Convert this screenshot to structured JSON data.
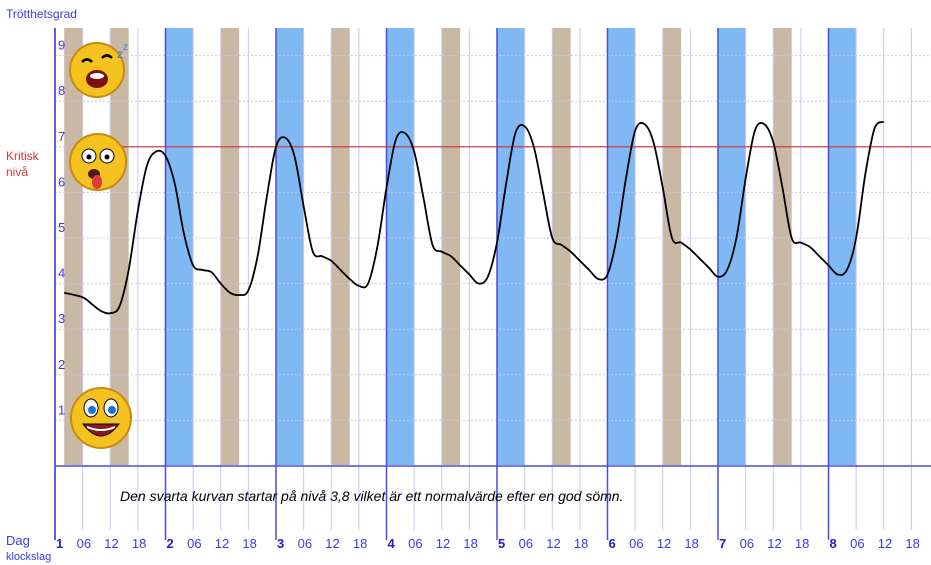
{
  "chart_data": {
    "type": "line",
    "title": "Trötthetsgrad",
    "critical_label_line1": "Kritisk",
    "critical_label_line2": "nivå",
    "critical_level": 7,
    "xlabel_line1": "Dag",
    "xlabel_line2": "klockslag",
    "caption": "Den svarta kurvan startar på nivå 3,8 vilket är ett normalvärde efter en god sömn.",
    "ylim": [
      0,
      10
    ],
    "y_ticks": [
      "1",
      "2",
      "3",
      "4",
      "5",
      "6",
      "7",
      "8",
      "9"
    ],
    "x_tick_labels": [
      "1",
      "06",
      "12",
      "18",
      "2",
      "06",
      "12",
      "18",
      "3",
      "06",
      "12",
      "18",
      "4",
      "06",
      "12",
      "18",
      "5",
      "06",
      "12",
      "18",
      "6",
      "06",
      "12",
      "18",
      "7",
      "06",
      "12",
      "18",
      "8",
      "06",
      "12",
      "18"
    ],
    "day_starts_hours": [
      0,
      24,
      48,
      72,
      96,
      120,
      144,
      168
    ],
    "xlim_hours": [
      0,
      192
    ],
    "awake_bands_hours": [
      [
        2,
        6
      ],
      [
        12,
        16
      ],
      [
        26,
        30
      ],
      [
        36,
        40
      ],
      [
        50,
        54
      ],
      [
        60,
        64
      ],
      [
        74,
        78
      ],
      [
        84,
        88
      ],
      [
        98,
        102
      ],
      [
        108,
        112
      ],
      [
        122,
        126
      ],
      [
        132,
        136
      ],
      [
        146,
        150
      ],
      [
        156,
        160
      ],
      [
        170,
        174
      ]
    ],
    "sleep_bands_hours": [
      [
        24,
        30
      ],
      [
        48,
        54
      ],
      [
        72,
        78
      ],
      [
        96,
        102
      ],
      [
        120,
        126
      ],
      [
        144,
        150
      ],
      [
        168,
        174
      ]
    ],
    "series": [
      {
        "color": "#000000",
        "x": [
          2,
          6,
          8,
          10,
          12,
          14,
          16,
          18,
          20,
          22,
          24,
          26,
          28,
          30,
          32,
          34,
          36,
          38,
          40,
          42,
          44,
          46,
          48,
          50,
          52,
          54,
          56,
          58,
          60,
          62,
          64,
          66,
          68,
          70,
          72,
          74,
          76,
          78,
          80,
          82,
          84,
          86,
          88,
          90,
          92,
          94,
          96,
          98,
          100,
          102,
          104,
          106,
          108,
          110,
          112,
          114,
          116,
          118,
          120,
          122,
          124,
          126,
          128,
          130,
          132,
          134,
          136,
          138,
          140,
          142,
          144,
          146,
          148,
          150,
          152,
          154,
          156,
          158,
          160,
          162,
          164,
          166,
          168,
          170,
          172,
          174,
          176,
          178,
          180
        ],
        "values": [
          3.8,
          3.7,
          3.55,
          3.4,
          3.35,
          3.5,
          4.3,
          5.6,
          6.6,
          6.9,
          6.8,
          6.2,
          5.1,
          4.4,
          4.3,
          4.25,
          4.0,
          3.8,
          3.75,
          3.85,
          4.6,
          5.9,
          7.0,
          7.2,
          6.8,
          5.7,
          4.7,
          4.6,
          4.5,
          4.3,
          4.1,
          3.95,
          4.0,
          4.8,
          6.1,
          7.15,
          7.3,
          6.9,
          5.9,
          4.85,
          4.7,
          4.6,
          4.4,
          4.2,
          4.0,
          4.15,
          4.9,
          6.2,
          7.3,
          7.45,
          7.0,
          6.0,
          5.0,
          4.85,
          4.7,
          4.5,
          4.3,
          4.1,
          4.2,
          5.0,
          6.3,
          7.35,
          7.5,
          7.1,
          6.1,
          5.0,
          4.9,
          4.75,
          4.55,
          4.35,
          4.15,
          4.3,
          5.0,
          6.3,
          7.35,
          7.5,
          7.1,
          6.1,
          5.0,
          4.9,
          4.8,
          4.6,
          4.4,
          4.2,
          4.3,
          5.0,
          6.4,
          7.4,
          7.55
        ]
      }
    ]
  },
  "icons": {
    "sleepy_face": "yawning-sleepy-face-icon",
    "tired_face": "exhausted-face-icon",
    "happy_face": "happy-face-icon"
  },
  "colors": {
    "grid": "#c8c8f0",
    "axis": "#4a4ae0",
    "awake_band": "#c9b8a4",
    "sleep_band": "#7fb8f2",
    "critical_line": "#c43030",
    "curve": "#000000"
  }
}
